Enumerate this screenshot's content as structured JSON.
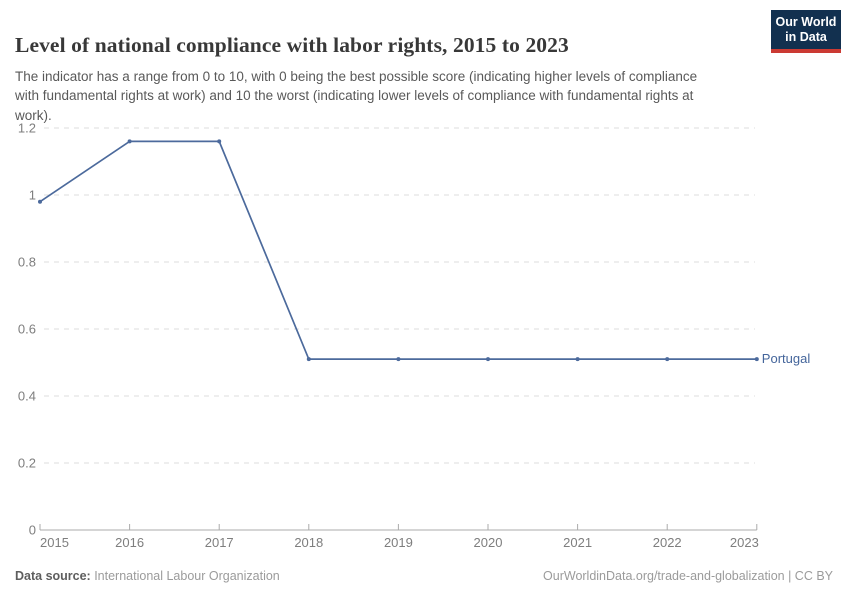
{
  "header": {
    "title": "Level of national compliance with labor rights, 2015 to 2023",
    "subtitle": "The indicator has a range from 0 to 10, with 0 being the best possible score (indicating higher levels of compliance with fundamental rights at work) and 10 the worst (indicating lower levels of compliance with fundamental rights at work).",
    "logo": {
      "line1": "Our World",
      "line2": "in Data"
    }
  },
  "chart_data": {
    "type": "line",
    "title": "Level of national compliance with labor rights, 2015 to 2023",
    "x": [
      2015,
      2016,
      2017,
      2018,
      2019,
      2020,
      2021,
      2022,
      2023
    ],
    "series": [
      {
        "name": "Portugal",
        "values": [
          0.98,
          1.16,
          1.16,
          0.51,
          0.51,
          0.51,
          0.51,
          0.51,
          0.51
        ]
      }
    ],
    "xlabel": "",
    "ylabel": "",
    "ylim": [
      0,
      1.2
    ],
    "yticks": [
      0,
      0.2,
      0.4,
      0.6,
      0.8,
      1,
      1.2
    ],
    "ytick_labels": [
      "0",
      "0.2",
      "0.4",
      "0.6",
      "0.8",
      "1",
      "1.2"
    ],
    "grid": "horizontal-dashed",
    "legend_position": "line-end-label",
    "line_color": "#4c6a9c",
    "marker": "dot"
  },
  "footer": {
    "datasource_label": "Data source:",
    "datasource_value": " International Labour Organization",
    "credit": "OurWorldinData.org/trade-and-globalization | CC BY"
  },
  "colors": {
    "accent": "#4c6a9c",
    "logo_bg": "#12304f",
    "logo_stripe": "#cb3a33",
    "gridline": "#dcdcdc",
    "axis": "#ababab",
    "tick_text": "#7e7e7e"
  }
}
